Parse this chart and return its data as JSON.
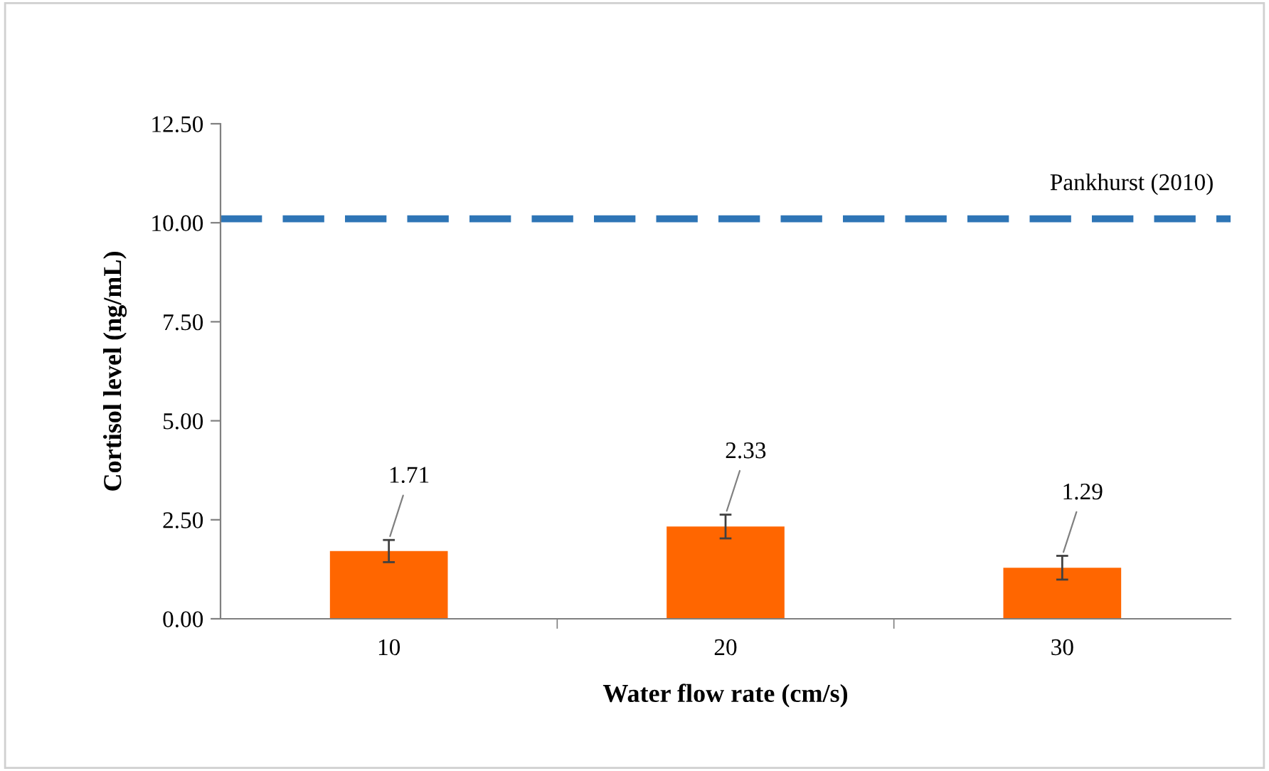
{
  "chart_data": {
    "type": "bar",
    "xlabel": "Water flow rate (cm/s)",
    "ylabel": "Cortisol level (ng/mL)",
    "categories": [
      "10",
      "20",
      "30"
    ],
    "values": [
      1.71,
      2.33,
      1.29
    ],
    "errors": [
      0.28,
      0.3,
      0.3
    ],
    "color": "#ff6600",
    "data_labels": true,
    "ylim": [
      0,
      12.5
    ],
    "yticks": [
      {
        "value": 0,
        "label": "0.00"
      },
      {
        "value": 2.5,
        "label": "2.50"
      },
      {
        "value": 5,
        "label": "5.00"
      },
      {
        "value": 7.5,
        "label": "7.50"
      },
      {
        "value": 10,
        "label": "10.00"
      },
      {
        "value": 12.5,
        "label": "12.50"
      }
    ],
    "ref_lines": [
      {
        "axis": "y",
        "value": 10.1,
        "label": "Pankhurst (2010)",
        "color": "#2e75b6",
        "line_style": "dashed"
      }
    ],
    "grid": false,
    "legend": false
  }
}
